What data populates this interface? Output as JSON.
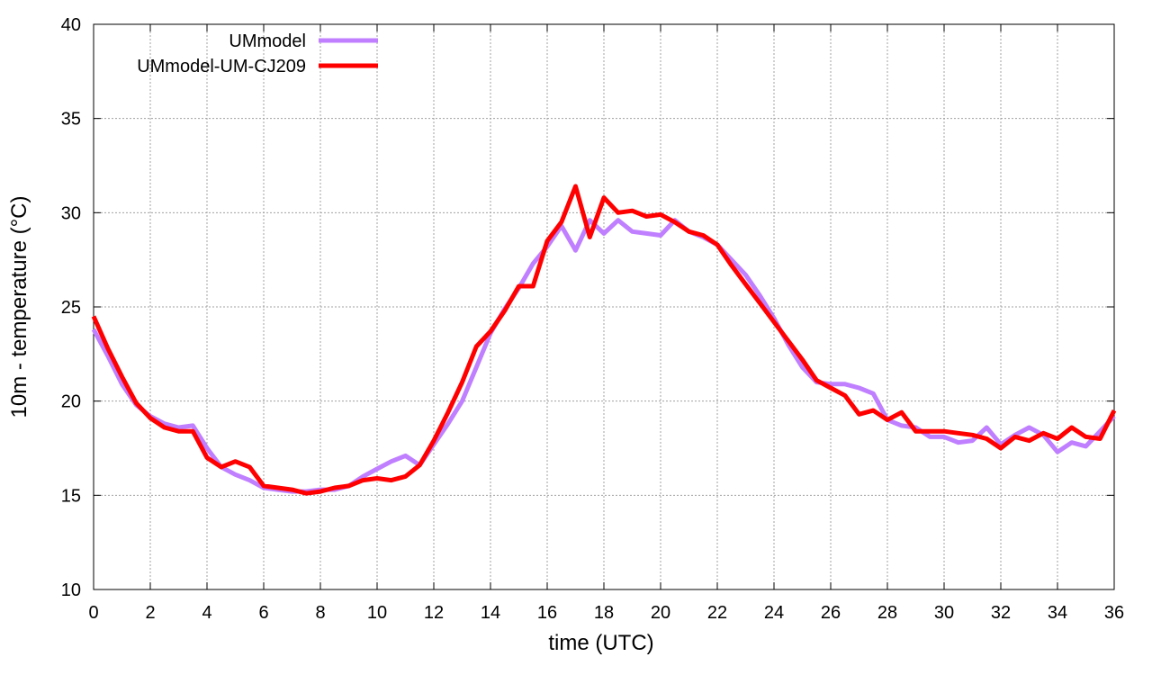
{
  "chart_data": {
    "type": "line",
    "title": "",
    "xlabel": "time (UTC)",
    "ylabel": "10m - temperature (°C)",
    "xlim": [
      0,
      36
    ],
    "ylim": [
      10,
      40
    ],
    "xticks": [
      "0",
      "2",
      "4",
      "6",
      "8",
      "10",
      "12",
      "14",
      "16",
      "18",
      "20",
      "22",
      "24",
      "26",
      "28",
      "30",
      "32",
      "34",
      "36"
    ],
    "yticks": [
      "10",
      "15",
      "20",
      "25",
      "30",
      "35",
      "40"
    ],
    "grid": true,
    "legend_position": "top-left",
    "x": [
      0,
      0.5,
      1,
      1.5,
      2,
      2.5,
      3,
      3.5,
      4,
      4.5,
      5,
      5.5,
      6,
      6.5,
      7,
      7.5,
      8,
      8.5,
      9,
      9.5,
      10,
      10.5,
      11,
      11.5,
      12,
      12.5,
      13,
      13.5,
      14,
      14.5,
      15,
      15.5,
      16,
      16.5,
      17,
      17.5,
      18,
      18.5,
      19,
      19.5,
      20,
      20.5,
      21,
      21.5,
      22,
      22.5,
      23,
      23.5,
      24,
      24.5,
      25,
      25.5,
      26,
      26.5,
      27,
      27.5,
      28,
      28.5,
      29,
      29.5,
      30,
      30.5,
      31,
      31.5,
      32,
      32.5,
      33,
      33.5,
      34,
      34.5,
      35,
      35.5,
      36
    ],
    "series": [
      {
        "name": "UMmodel",
        "color": "#bf7fff",
        "values": [
          23.8,
          22.4,
          20.9,
          19.8,
          19.2,
          18.8,
          18.6,
          18.7,
          17.5,
          16.5,
          16.1,
          15.8,
          15.4,
          15.3,
          15.2,
          15.2,
          15.3,
          15.3,
          15.5,
          16.0,
          16.4,
          16.8,
          17.1,
          16.6,
          17.7,
          18.8,
          20.0,
          21.8,
          23.6,
          24.9,
          26.0,
          27.3,
          28.2,
          29.3,
          28.0,
          29.6,
          28.9,
          29.6,
          29.0,
          28.9,
          28.8,
          29.6,
          29.0,
          28.7,
          28.3,
          27.5,
          26.7,
          25.6,
          24.4,
          23.0,
          21.8,
          21.0,
          20.9,
          20.9,
          20.7,
          20.4,
          19.0,
          18.7,
          18.6,
          18.1,
          18.1,
          17.8,
          17.9,
          18.6,
          17.7,
          18.2,
          18.6,
          18.2,
          17.3,
          17.8,
          17.6,
          18.4,
          19.2
        ]
      },
      {
        "name": "UMmodel-UM-CJ209",
        "color": "#ff0000",
        "values": [
          24.5,
          22.8,
          21.3,
          19.9,
          19.1,
          18.6,
          18.4,
          18.4,
          17.0,
          16.5,
          16.8,
          16.5,
          15.5,
          15.4,
          15.3,
          15.1,
          15.2,
          15.4,
          15.5,
          15.8,
          15.9,
          15.8,
          16.0,
          16.6,
          17.9,
          19.4,
          21.0,
          22.9,
          23.7,
          24.8,
          26.1,
          26.1,
          28.5,
          29.5,
          31.4,
          28.7,
          30.8,
          30.0,
          30.1,
          29.8,
          29.9,
          29.5,
          29.0,
          28.8,
          28.3,
          27.2,
          26.2,
          25.2,
          24.2,
          23.2,
          22.2,
          21.1,
          20.7,
          20.3,
          19.3,
          19.5,
          19.0,
          19.4,
          18.4,
          18.4,
          18.4,
          18.3,
          18.2,
          18.0,
          17.5,
          18.1,
          17.9,
          18.3,
          18.0,
          18.6,
          18.1,
          18.0,
          19.5
        ]
      }
    ]
  }
}
